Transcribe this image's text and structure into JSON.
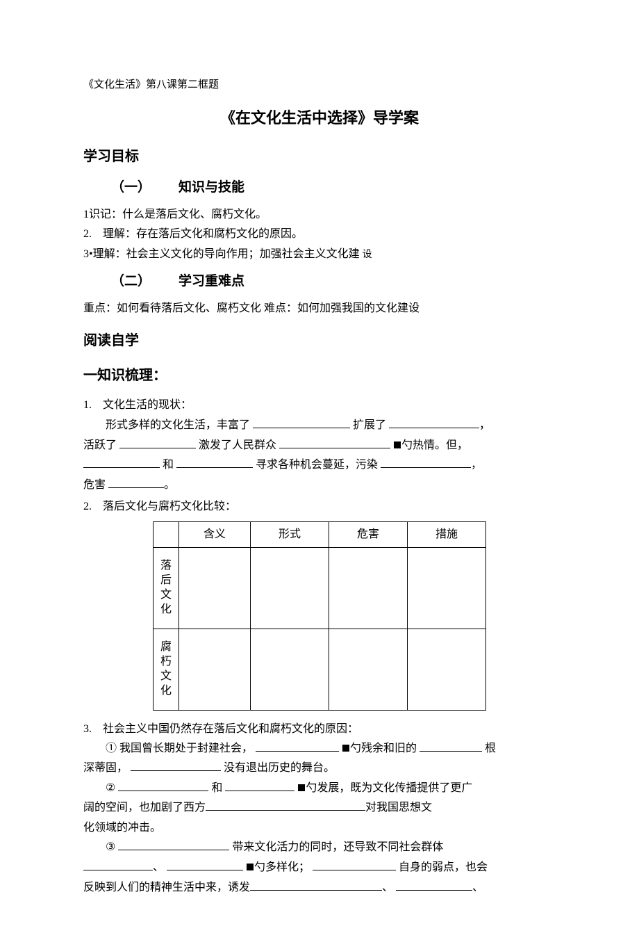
{
  "topnote": "《文化生活》第八课第二框题",
  "title": "《在文化生活中选择》导学案",
  "sec_objectives": "学习目标",
  "sub1_num": "（一）",
  "sub1_title": "知识与技能",
  "obj_items": [
    "1识记：什么是落后文化、腐朽文化。",
    "2.　理解：存在落后文化和腐朽文化的原因。"
  ],
  "obj_item3_a": "3•理解：社会主义文化的导向作用；加强社会主义文化建",
  "obj_item3_b": "设",
  "sub2_num": "（二）",
  "sub2_title": "学习重难点",
  "keypoint": "重点：如何看待落后文化、腐朽文化 难点：如何加强我国的文化建设",
  "sec_reading": "阅读自学",
  "sec_outline": "一知识梳理：",
  "q1_head": "1.　文化生活的现状：",
  "q1_l1a": "形式多样的文化生活，丰富了",
  "q1_l1b": "扩展了",
  "q1_l2a": "活跃了",
  "q1_l2b": "激发了人民群众",
  "q1_l2c": "勺热情。但，",
  "q1_l3a": "和",
  "q1_l3b": "寻求各种机会蔓延，污染",
  "q1_l4a": "危害",
  "q1_l4b": "。",
  "q2_head": "2.　落后文化与腐朽文化比较：",
  "table": {
    "cols": [
      "含义",
      "形式",
      "危害",
      "措施"
    ],
    "rows": [
      "落后文化",
      "腐朽文化"
    ]
  },
  "q3_head": "3.　社会主义中国仍然存在落后文化和腐朽文化的原因：",
  "q3_1a": "① 我国曾长期处于封建社会，",
  "q3_1b": "勺残余和旧的",
  "q3_1c": "根",
  "q3_1d": "深蒂固，",
  "q3_1e": "没有退出历史的舞台。",
  "q3_2a": "②",
  "q3_2b": "和",
  "q3_2c": "勺发展，既为文化传播提供了更广",
  "q3_2d": "阔的空间，也加剧了西方",
  "q3_2e": "对我国思想文",
  "q3_2f": "化领域的冲击。",
  "q3_3a": "③",
  "q3_3b": "带来文化活力的同时，还导致不同社会群体",
  "q3_3c": "、",
  "q3_3d": "勺多样化；",
  "q3_3e": "自身的弱点，也会",
  "q3_3f": "反映到人们的精神生活中来，诱发",
  "q3_3g": "、",
  "q3_3h": "、"
}
